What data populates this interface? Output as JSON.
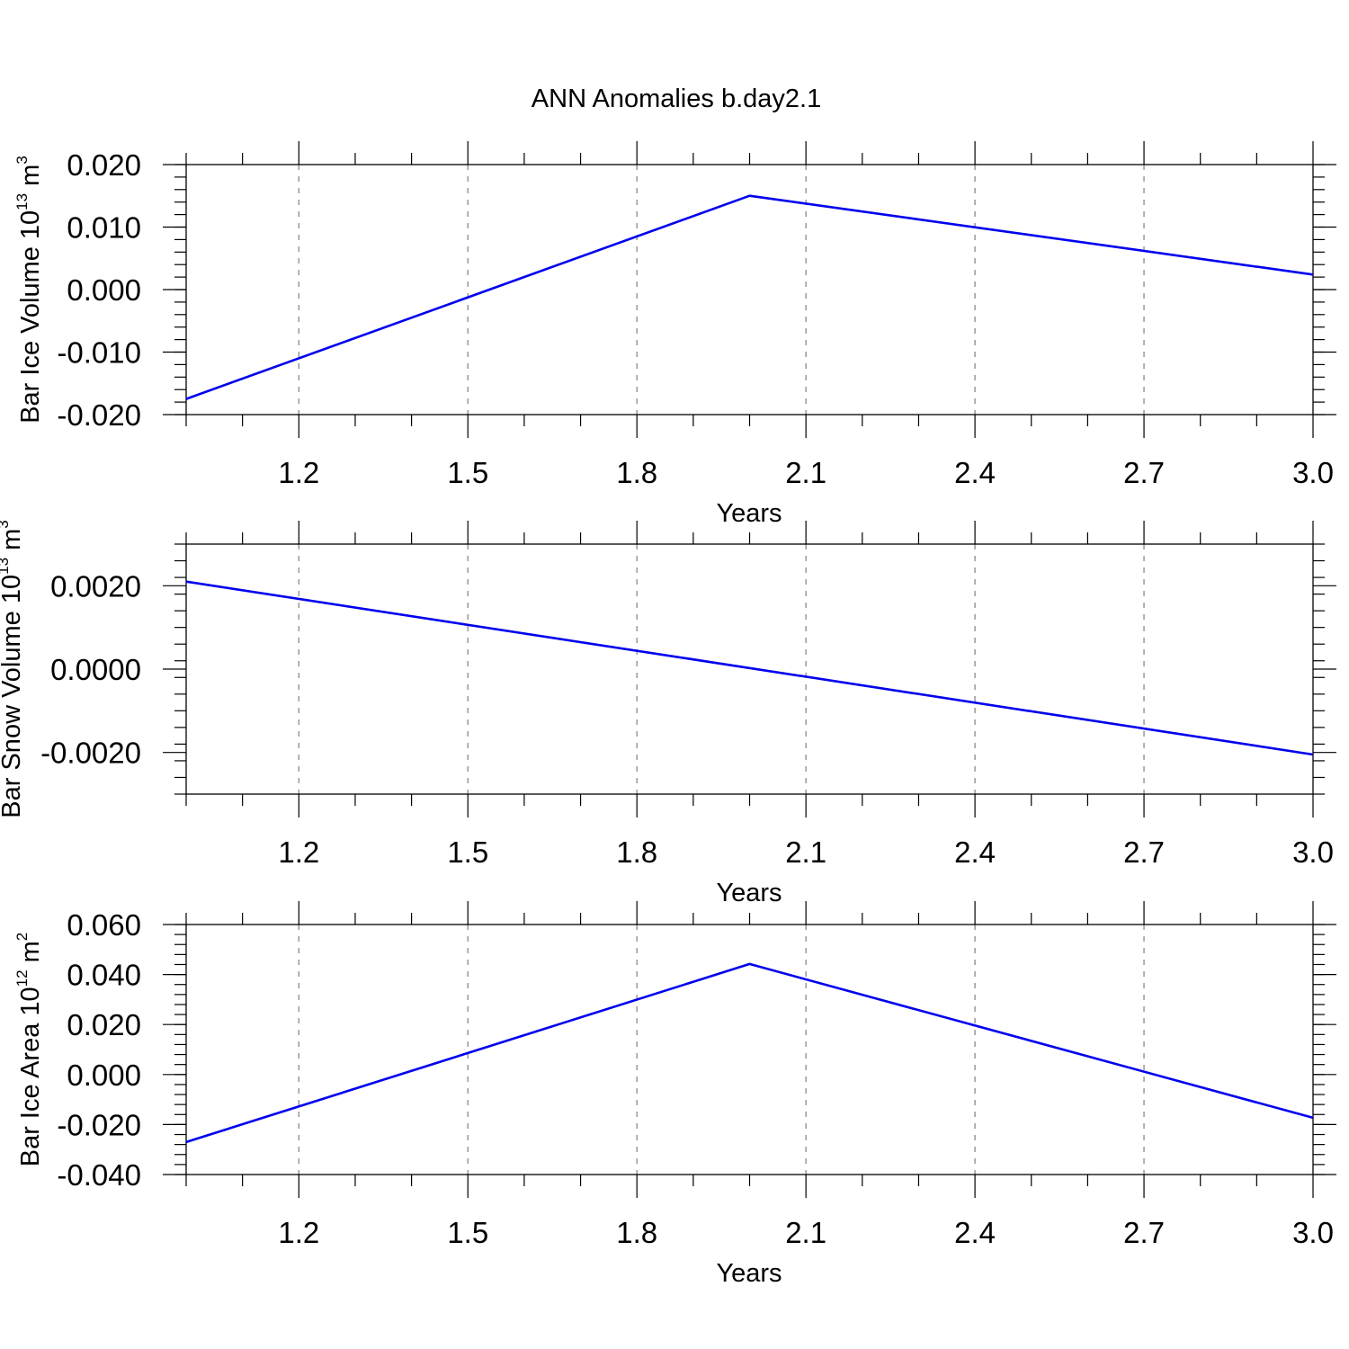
{
  "title": "ANN Anomalies b.day2.1",
  "colors": {
    "series": "#0000ee",
    "grid": "#999999"
  },
  "chart_data": [
    {
      "type": "line",
      "xlabel": "Years",
      "ylabel": {
        "text": "Bar Ice Volume 10",
        "exp": "13",
        "unit": " m",
        "unit_exp": "3"
      },
      "xlim": [
        1,
        3
      ],
      "ylim": [
        -0.02,
        0.02
      ],
      "xticks": [
        1.2,
        1.5,
        1.8,
        2.1,
        2.4,
        2.7,
        3.0
      ],
      "xtick_labels": [
        "1.2",
        "1.5",
        "1.8",
        "2.1",
        "2.4",
        "2.7",
        "3.0"
      ],
      "yticks": [
        -0.02,
        -0.01,
        0.0,
        0.01,
        0.02
      ],
      "ytick_labels": [
        "-0.020",
        "-0.010",
        "0.000",
        "0.010",
        "0.020"
      ],
      "grid": "x-dashed",
      "x": [
        1,
        2,
        3
      ],
      "values": [
        -0.0175,
        0.015,
        0.0024
      ]
    },
    {
      "type": "line",
      "xlabel": "Years",
      "ylabel": {
        "text": "Bar Snow Volume 10",
        "exp": "13",
        "unit": " m",
        "unit_exp": "3"
      },
      "xlim": [
        1,
        3
      ],
      "ylim": [
        -0.003,
        0.003
      ],
      "xticks": [
        1.2,
        1.5,
        1.8,
        2.1,
        2.4,
        2.7,
        3.0
      ],
      "xtick_labels": [
        "1.2",
        "1.5",
        "1.8",
        "2.1",
        "2.4",
        "2.7",
        "3.0"
      ],
      "yticks": [
        -0.002,
        0.0,
        0.002
      ],
      "ytick_labels": [
        "-0.0020",
        "0.0000",
        "0.0020"
      ],
      "grid": "x-dashed",
      "x": [
        1,
        3
      ],
      "values": [
        0.0021,
        -0.00205
      ]
    },
    {
      "type": "line",
      "xlabel": "Years",
      "ylabel": {
        "text": "Bar Ice Area 10",
        "exp": "12",
        "unit": " m",
        "unit_exp": "2"
      },
      "xlim": [
        1,
        3
      ],
      "ylim": [
        -0.04,
        0.06
      ],
      "xticks": [
        1.2,
        1.5,
        1.8,
        2.1,
        2.4,
        2.7,
        3.0
      ],
      "xtick_labels": [
        "1.2",
        "1.5",
        "1.8",
        "2.1",
        "2.4",
        "2.7",
        "3.0"
      ],
      "yticks": [
        -0.04,
        -0.02,
        0.0,
        0.02,
        0.04,
        0.06
      ],
      "ytick_labels": [
        "-0.040",
        "-0.020",
        "0.000",
        "0.020",
        "0.040",
        "0.060"
      ],
      "grid": "x-dashed",
      "x": [
        1,
        2,
        3
      ],
      "values": [
        -0.027,
        0.0442,
        -0.0173
      ]
    }
  ]
}
